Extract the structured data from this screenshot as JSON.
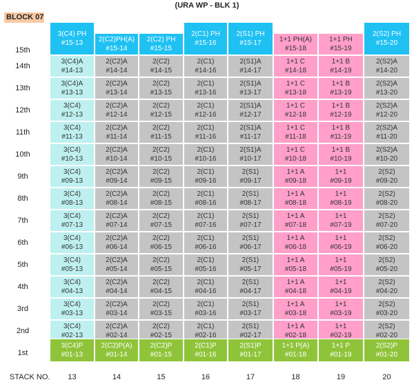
{
  "title": "(URA WP - BLK 1)",
  "block": "BLOCK 07",
  "stack_title": "STACK NO.",
  "stacks": [
    "13",
    "14",
    "15",
    "16",
    "17",
    "18",
    "19",
    "20"
  ],
  "floors": [
    "15th",
    "14th",
    "13th",
    "12th",
    "11th",
    "10th",
    "9th",
    "8th",
    "7th",
    "6th",
    "5th",
    "4th",
    "3rd",
    "2nd",
    "1st"
  ],
  "ph_row": [
    {
      "l1": "3(C4) PH",
      "l2": "#15-13"
    },
    {
      "l1": "2(C2)PH(A)",
      "l2": "#15-14"
    },
    {
      "l1": "2(C2) PH",
      "l2": "#15-15"
    },
    {
      "l1": "2(C1) PH",
      "l2": "#15-16"
    },
    {
      "l1": "2(S1) PH",
      "l2": "#15-17"
    },
    {
      "l1": "1+1 PH(A)",
      "l2": "#15-18"
    },
    {
      "l1": "1+1  PH",
      "l2": "#15-19"
    },
    {
      "l1": "2(S2) PH",
      "l2": "#15-20"
    }
  ],
  "mid_rows": [
    [
      "3(C4)A",
      "2(C2)A",
      "2(C2)",
      "2(C1)",
      "2(S1)A",
      "1+1 C",
      "1+1 B",
      "2(S2)A"
    ],
    [
      "3(C4)A",
      "2(C2)A",
      "2(C2)",
      "2(C1)",
      "2(S1)A",
      "1+1 C",
      "1+1 B",
      "2(S2)A"
    ],
    [
      "3(C4)",
      "2(C2)A",
      "2(C2)",
      "2(C1)",
      "2(S1)A",
      "1+1 C",
      "1+1 B",
      "2(S2)A"
    ],
    [
      "3(C4)",
      "2(C2)A",
      "2(C2)",
      "2(C1)",
      "2(S1)A",
      "1+1 C",
      "1+1 B",
      "2(S2)A"
    ],
    [
      "3(C4)",
      "2(C2)A",
      "2(C2)",
      "2(C1)",
      "2(S1)A",
      "1+1 C",
      "1+1 B",
      "2(S2)A"
    ],
    [
      "3(C4)",
      "2(C2)A",
      "2(C2)",
      "2(C1)",
      "2(S1)",
      "1+1 A",
      "1+1",
      "2(S2)"
    ],
    [
      "3(C4)",
      "2(C2)A",
      "2(C2)",
      "2(C1)",
      "2(S1)",
      "1+1 A",
      "1+1",
      "2(S2)"
    ],
    [
      "3(C4)",
      "2(C2)A",
      "2(C2)",
      "2(C1)",
      "2(S1)",
      "1+1 A",
      "1+1",
      "2(S2)"
    ],
    [
      "3(C4)",
      "2(C2)A",
      "2(C2)",
      "2(C1)",
      "2(S1)",
      "1+1 A",
      "1+1",
      "2(S2)"
    ],
    [
      "3(C4)",
      "2(C2)A",
      "2(C2)",
      "2(C1)",
      "2(S1)",
      "1+1 A",
      "1+1",
      "2(S2)"
    ],
    [
      "3(C4)",
      "2(C2)A",
      "2(C2)",
      "2(C1)",
      "2(S1)",
      "1+1 A",
      "1+1",
      "2(S2)"
    ],
    [
      "3(C4)",
      "2(C2)A",
      "2(C2)",
      "2(C1)",
      "2(S1)",
      "1+1 A",
      "1+1",
      "2(S2)"
    ],
    [
      "3(C4)",
      "2(C2)A",
      "2(C2)",
      "2(C1)",
      "2(S1)",
      "1+1 A",
      "1+1",
      "2(S2)"
    ]
  ],
  "mid_units": [
    [
      "#14-13",
      "#14-14",
      "#14-15",
      "#14-16",
      "#14-17",
      "#14-18",
      "#14-19",
      "#14-20"
    ],
    [
      "#13-13",
      "#13-14",
      "#13-15",
      "#13-16",
      "#13-17",
      "#13-18",
      "#13-19",
      "#13-20"
    ],
    [
      "#12-13",
      "#12-14",
      "#12-15",
      "#12-16",
      "#12-17",
      "#12-18",
      "#12-19",
      "#12-20"
    ],
    [
      "#11-13",
      "#11-14",
      "#11-15",
      "#11-16",
      "#11-17",
      "#11-18",
      "#11-19",
      "#11-20"
    ],
    [
      "#10-13",
      "#10-14",
      "#10-15",
      "#10-16",
      "#10-17",
      "#10-18",
      "#10-19",
      "#10-20"
    ],
    [
      "#09-13",
      "#09-14",
      "#09-15",
      "#09-16",
      "#09-17",
      "#09-18",
      "#09-19",
      "#09-20"
    ],
    [
      "#08-13",
      "#08-14",
      "#08-15",
      "#08-16",
      "#08-17",
      "#08-18",
      "#08-19",
      "#08-20"
    ],
    [
      "#07-13",
      "#07-14",
      "#07-15",
      "#07-16",
      "#07-17",
      "#07-18",
      "#07-19",
      "#07-20"
    ],
    [
      "#06-13",
      "#06-14",
      "#06-15",
      "#06-16",
      "#06-17",
      "#06-18",
      "#06-19",
      "#06-20"
    ],
    [
      "#05-13",
      "#05-14",
      "#05-15",
      "#05-16",
      "#05-17",
      "#05-18",
      "#05-19",
      "#05-20"
    ],
    [
      "#04-13",
      "#04-14",
      "#04-15",
      "#04-16",
      "#04-17",
      "#04-18",
      "#04-19",
      "#04-20"
    ],
    [
      "#03-13",
      "#03-14",
      "#03-15",
      "#03-16",
      "#03-17",
      "#03-18",
      "#03-19",
      "#03-20"
    ],
    [
      "#02-13",
      "#02-14",
      "#02-15",
      "#02-16",
      "#02-17",
      "#02-18",
      "#02-19",
      "#02-20"
    ]
  ],
  "ground_row": [
    {
      "l1": "3(C4)P",
      "l2": "#01-13"
    },
    {
      "l1": "2(C2)P(A)",
      "l2": "#01-14"
    },
    {
      "l1": "2(C2)P",
      "l2": "#01-15"
    },
    {
      "l1": "2(C1)P",
      "l2": "#01-16"
    },
    {
      "l1": "2(S1)P",
      "l2": "#01-17"
    },
    {
      "l1": "1+1 P(A)",
      "l2": "#01-18"
    },
    {
      "l1": "1+1 P",
      "l2": "#01-19"
    },
    {
      "l1": "2(S2)P",
      "l2": "#01-20"
    }
  ],
  "colors": {
    "c4": "#bff0f0",
    "gray": "#c4c4c4",
    "pink": "#ff9fca",
    "blue": "#1fc1f3",
    "green": "#8fc43a"
  }
}
